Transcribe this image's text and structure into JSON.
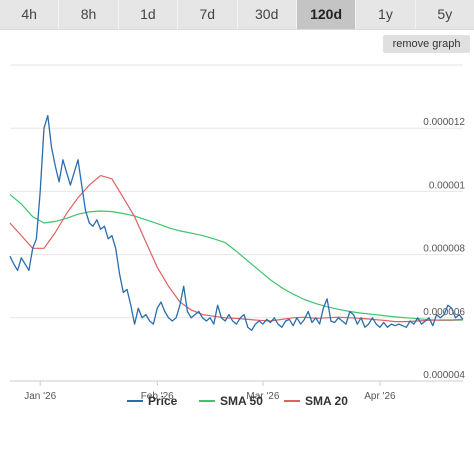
{
  "tabs": [
    {
      "label": "4h",
      "active": false
    },
    {
      "label": "8h",
      "active": false
    },
    {
      "label": "1d",
      "active": false
    },
    {
      "label": "7d",
      "active": false
    },
    {
      "label": "30d",
      "active": false
    },
    {
      "label": "120d",
      "active": true
    },
    {
      "label": "1y",
      "active": false
    },
    {
      "label": "5y",
      "active": false
    }
  ],
  "remove_graph_label": "remove graph",
  "chart_data": {
    "type": "line",
    "x_ticks": [
      "Jan '26",
      "Feb '26",
      "Mar '26",
      "Apr '26"
    ],
    "x_tick_days": [
      8,
      39,
      67,
      98
    ],
    "x_range": [
      0,
      120
    ],
    "y_ticks": [
      4e-06,
      6e-06,
      8e-06,
      1e-05,
      1.2e-05
    ],
    "y_tick_labels": [
      "0.000004",
      "0.000006",
      "0.000008",
      "0.00001",
      "0.000012"
    ],
    "ylim": [
      4e-06,
      1.4e-05
    ],
    "legend_position": "bottom",
    "grid": "horizontal",
    "series": [
      {
        "name": "Price",
        "color": "#2a6dae",
        "x": [
          0,
          1,
          2,
          3,
          4,
          5,
          6,
          7,
          8,
          9,
          10,
          11,
          12,
          13,
          14,
          15,
          16,
          17,
          18,
          19,
          20,
          21,
          22,
          23,
          24,
          25,
          26,
          27,
          28,
          29,
          30,
          31,
          32,
          33,
          34,
          35,
          36,
          37,
          38,
          39,
          40,
          41,
          42,
          43,
          44,
          45,
          46,
          47,
          48,
          49,
          50,
          51,
          52,
          53,
          54,
          55,
          56,
          57,
          58,
          59,
          60,
          61,
          62,
          63,
          64,
          65,
          66,
          67,
          68,
          69,
          70,
          71,
          72,
          73,
          74,
          75,
          76,
          77,
          78,
          79,
          80,
          81,
          82,
          83,
          84,
          85,
          86,
          87,
          88,
          89,
          90,
          91,
          92,
          93,
          94,
          95,
          96,
          97,
          98,
          99,
          100,
          101,
          102,
          103,
          104,
          105,
          106,
          107,
          108,
          109,
          110,
          111,
          112,
          113,
          114,
          115,
          116,
          117,
          118,
          119,
          120
        ],
        "values": [
          7.95e-06,
          7.7e-06,
          7.5e-06,
          7.9e-06,
          7.7e-06,
          7.5e-06,
          8.2e-06,
          8.5e-06,
          1e-05,
          1.2e-05,
          1.24e-05,
          1.14e-05,
          1.08e-05,
          1.03e-05,
          1.1e-05,
          1.06e-05,
          1.02e-05,
          1.06e-05,
          1.1e-05,
          1.02e-05,
          9.4e-06,
          9e-06,
          8.9e-06,
          9.1e-06,
          8.8e-06,
          8.9e-06,
          8.5e-06,
          8.6e-06,
          8.2e-06,
          7.4e-06,
          6.8e-06,
          6.9e-06,
          6.4e-06,
          5.8e-06,
          6.3e-06,
          6e-06,
          6.1e-06,
          5.9e-06,
          5.8e-06,
          6.3e-06,
          6.5e-06,
          6.2e-06,
          6e-06,
          5.9e-06,
          6e-06,
          6.4e-06,
          7e-06,
          6.2e-06,
          6e-06,
          6.1e-06,
          6.2e-06,
          6e-06,
          5.9e-06,
          6e-06,
          5.8e-06,
          6.4e-06,
          6e-06,
          5.9e-06,
          6.1e-06,
          5.9e-06,
          5.8e-06,
          6e-06,
          6.1e-06,
          5.7e-06,
          5.6e-06,
          5.8e-06,
          5.9e-06,
          5.8e-06,
          5.95e-06,
          5.85e-06,
          6e-06,
          5.8e-06,
          5.7e-06,
          5.9e-06,
          5.95e-06,
          5.75e-06,
          6e-06,
          5.8e-06,
          5.95e-06,
          6.2e-06,
          5.85e-06,
          6e-06,
          5.8e-06,
          6.3e-06,
          6.6e-06,
          5.9e-06,
          5.85e-06,
          6e-06,
          5.9e-06,
          5.8e-06,
          6.2e-06,
          6.1e-06,
          5.8e-06,
          6e-06,
          5.7e-06,
          5.8e-06,
          6e-06,
          5.8e-06,
          5.7e-06,
          5.85e-06,
          5.7e-06,
          5.8e-06,
          5.75e-06,
          5.8e-06,
          5.75e-06,
          5.7e-06,
          5.9e-06,
          5.8e-06,
          6e-06,
          5.8e-06,
          5.9e-06,
          6e-06,
          5.75e-06,
          6.1e-06,
          6e-06,
          6.1e-06,
          6.4e-06,
          6.3e-06,
          6e-06,
          6.1e-06,
          5.95e-06
        ]
      },
      {
        "name": "SMA 50",
        "color": "#3ec46d",
        "x": [
          0,
          3,
          6,
          9,
          12,
          15,
          18,
          21,
          24,
          27,
          30,
          33,
          36,
          39,
          42,
          45,
          48,
          51,
          54,
          57,
          60,
          63,
          66,
          69,
          72,
          75,
          78,
          81,
          84,
          87,
          90,
          93,
          96,
          99,
          102,
          105,
          108,
          111,
          114,
          117,
          120
        ],
        "values": [
          9.9e-06,
          9.6e-06,
          9.2e-06,
          9e-06,
          9.05e-06,
          9.15e-06,
          9.28e-06,
          9.35e-06,
          9.38e-06,
          9.36e-06,
          9.3e-06,
          9.22e-06,
          9.1e-06,
          8.98e-06,
          8.85e-06,
          8.75e-06,
          8.68e-06,
          8.6e-06,
          8.5e-06,
          8.38e-06,
          8.1e-06,
          7.8e-06,
          7.5e-06,
          7.2e-06,
          6.95e-06,
          6.75e-06,
          6.58e-06,
          6.45e-06,
          6.35e-06,
          6.27e-06,
          6.2e-06,
          6.15e-06,
          6.11e-06,
          6.07e-06,
          6.03e-06,
          6e-06,
          5.97e-06,
          5.94e-06,
          5.92e-06,
          5.92e-06,
          5.93e-06
        ]
      },
      {
        "name": "SMA 20",
        "color": "#e06060",
        "x": [
          0,
          3,
          6,
          9,
          12,
          15,
          18,
          21,
          24,
          27,
          30,
          33,
          36,
          39,
          42,
          45,
          48,
          51,
          54,
          57,
          60,
          63,
          66,
          69,
          72,
          75,
          78,
          81,
          84,
          87,
          90,
          93,
          96,
          99,
          102,
          105,
          108,
          111,
          114,
          117,
          120
        ],
        "values": [
          9e-06,
          8.6e-06,
          8.2e-06,
          8.2e-06,
          8.7e-06,
          9.3e-06,
          9.8e-06,
          1.02e-05,
          1.05e-05,
          1.04e-05,
          9.8e-06,
          9.2e-06,
          8.4e-06,
          7.6e-06,
          7e-06,
          6.5e-06,
          6.25e-06,
          6.1e-06,
          6.05e-06,
          6e-06,
          5.98e-06,
          5.95e-06,
          5.92e-06,
          5.9e-06,
          5.95e-06,
          6e-06,
          6.02e-06,
          5.98e-06,
          6e-06,
          6.02e-06,
          6e-06,
          5.98e-06,
          5.95e-06,
          5.92e-06,
          5.88e-06,
          5.88e-06,
          5.9e-06,
          5.92e-06,
          5.93e-06,
          5.93e-06,
          5.95e-06
        ]
      }
    ]
  }
}
